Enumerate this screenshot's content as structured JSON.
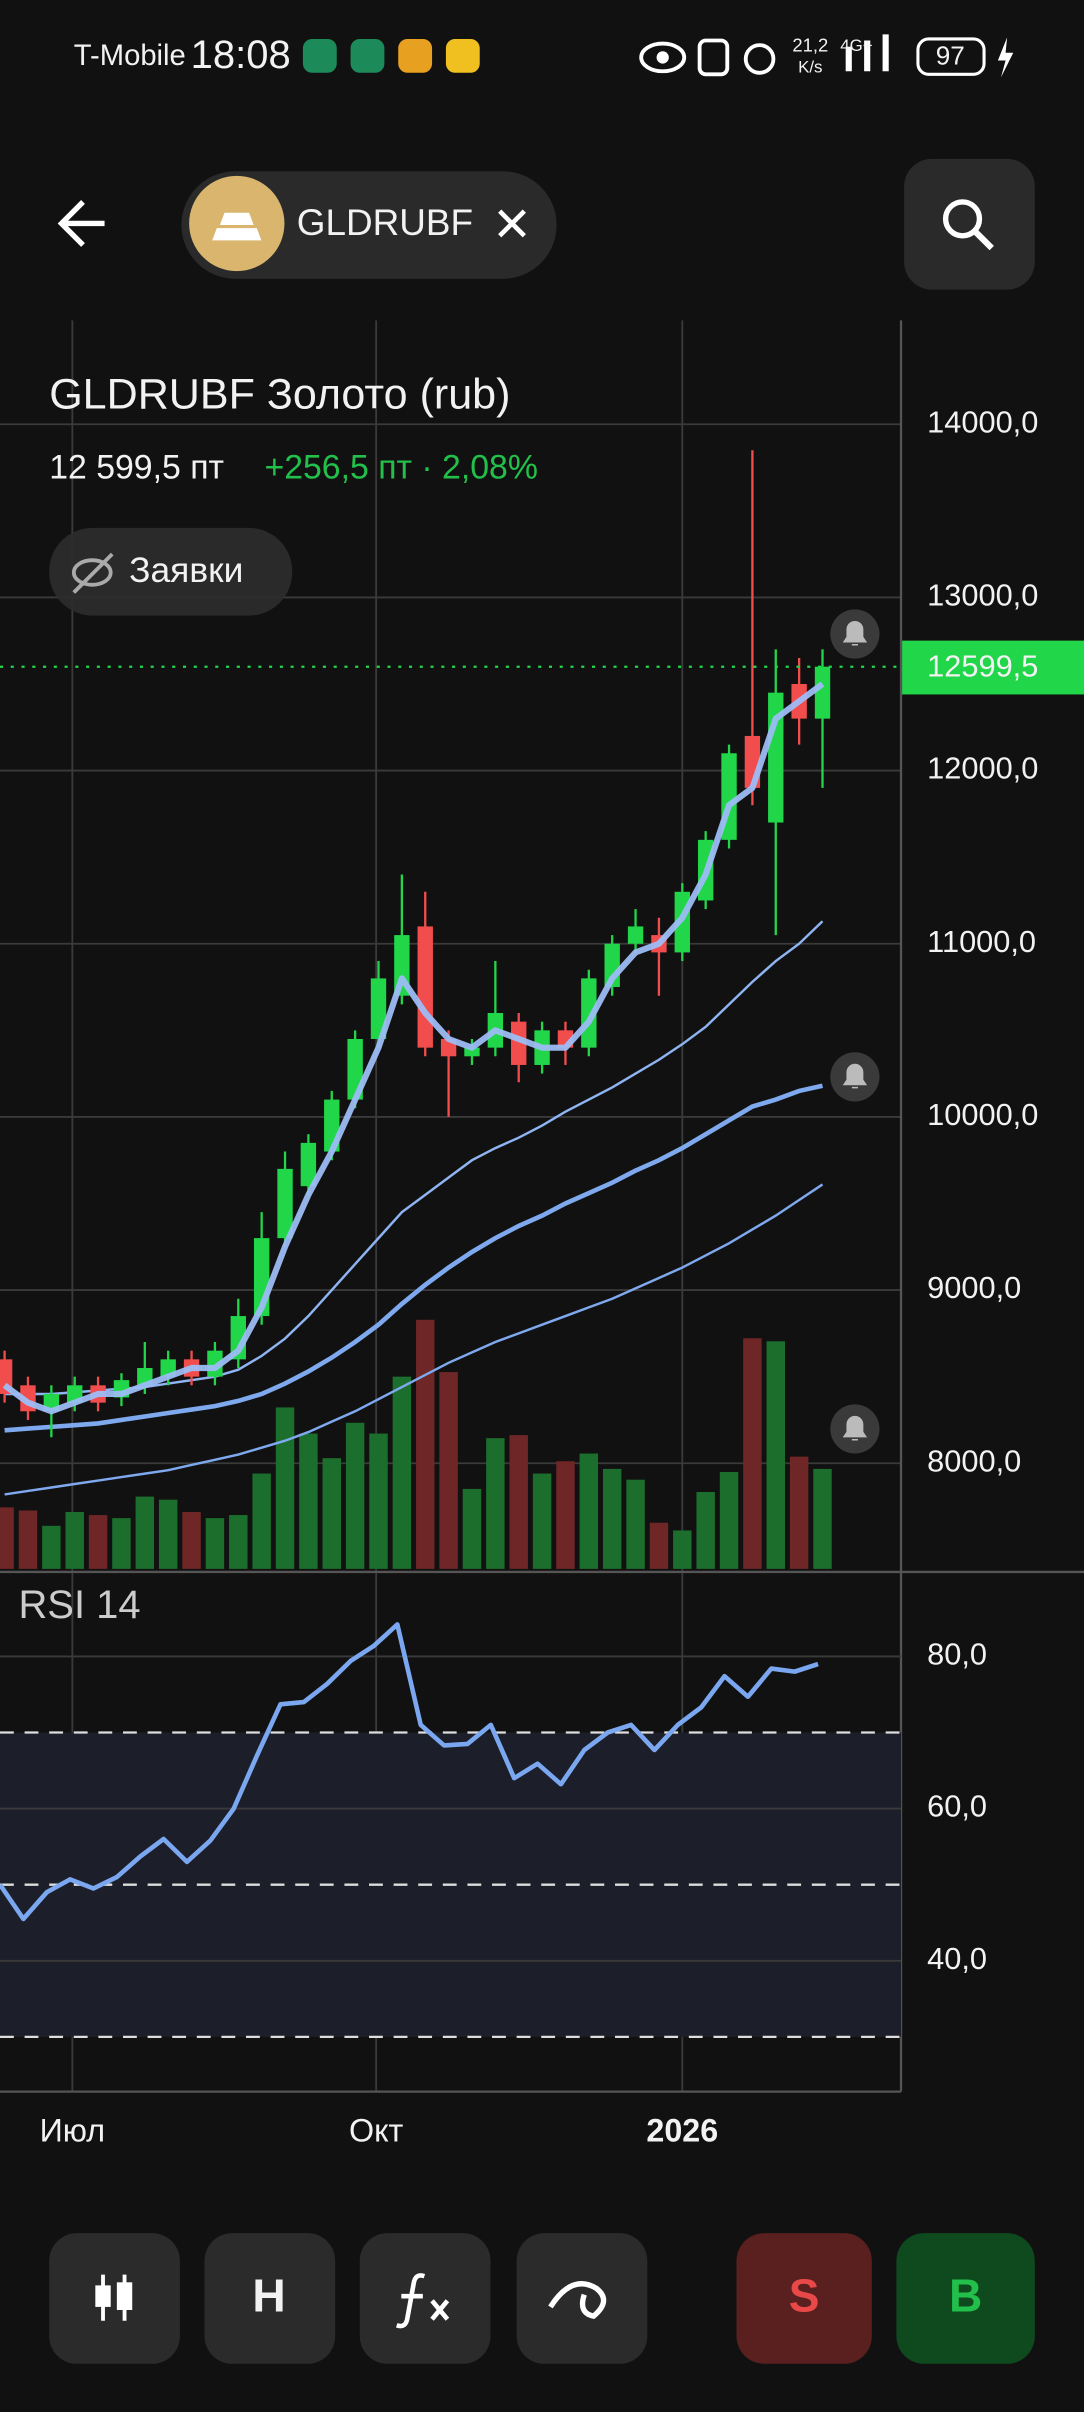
{
  "status_bar": {
    "carrier": "T-Mobile",
    "time": "18:08",
    "net_speed": "21,2",
    "net_unit": "K/s",
    "network": "4G+",
    "battery": "97"
  },
  "header": {
    "ticker": "GLDRUBF"
  },
  "instrument": {
    "title": "GLDRUBF Золото (rub)",
    "price": "12 599,5 пт",
    "change": "+256,5 пт · 2,08%"
  },
  "orders_button": "Заявки",
  "toolbar": {
    "h_button": "H",
    "sell_button": "S",
    "buy_button": "B"
  },
  "chart_data": [
    {
      "type": "candlestick",
      "x": [
        0,
        1,
        2,
        3,
        4,
        5,
        6,
        7,
        8,
        9,
        10,
        11,
        12,
        13,
        14,
        15,
        16,
        17,
        18,
        19,
        20,
        21,
        22,
        23,
        24,
        25,
        26,
        27,
        28,
        29,
        30,
        31,
        32,
        33,
        34,
        35
      ],
      "open": [
        8600,
        8450,
        8300,
        8350,
        8450,
        8380,
        8450,
        8500,
        8600,
        8500,
        8600,
        8850,
        9300,
        9600,
        9800,
        10100,
        10450,
        10700,
        11100,
        10450,
        10350,
        10400,
        10550,
        10300,
        10500,
        10400,
        10750,
        11000,
        11050,
        10950,
        11250,
        11600,
        12200,
        11700,
        12500,
        12300
      ],
      "close": [
        8400,
        8300,
        8400,
        8450,
        8350,
        8480,
        8550,
        8600,
        8500,
        8650,
        8850,
        9300,
        9700,
        9850,
        10100,
        10450,
        10800,
        11050,
        10400,
        10350,
        10400,
        10600,
        10300,
        10500,
        10400,
        10800,
        11000,
        11100,
        10950,
        11300,
        11600,
        12100,
        11900,
        12450,
        12300,
        12600
      ],
      "high": [
        8650,
        8500,
        8450,
        8500,
        8500,
        8520,
        8700,
        8650,
        8650,
        8700,
        8950,
        9450,
        9800,
        9900,
        10150,
        10500,
        10900,
        11400,
        11300,
        10500,
        10450,
        10900,
        10600,
        10550,
        10550,
        10850,
        11050,
        11200,
        11150,
        11350,
        11650,
        12150,
        13850,
        12700,
        12650,
        12700
      ],
      "low": [
        8350,
        8250,
        8150,
        8300,
        8300,
        8330,
        8400,
        8450,
        8450,
        8450,
        8550,
        8800,
        9250,
        9550,
        9750,
        10050,
        10400,
        10650,
        10350,
        10000,
        10300,
        10350,
        10200,
        10250,
        10300,
        10350,
        10700,
        10950,
        10700,
        10900,
        11200,
        11550,
        11800,
        11050,
        12150,
        11900
      ],
      "up_color": "#22d64a",
      "down_color": "#f24d4d",
      "volume": [
        40,
        38,
        28,
        37,
        35,
        33,
        47,
        45,
        37,
        33,
        35,
        62,
        105,
        88,
        72,
        95,
        88,
        125,
        162,
        128,
        52,
        85,
        87,
        62,
        70,
        75,
        65,
        58,
        30,
        25,
        50,
        63,
        150,
        148,
        73,
        65
      ],
      "volume_lim": [
        0,
        812
      ],
      "volume_up_color": "#1c6e2c",
      "volume_down_color": "#6e2626",
      "moving_averages": [
        {
          "color": "#7fa9ee",
          "values": [
            7820,
            7840,
            7860,
            7880,
            7900,
            7920,
            7940,
            7960,
            7990,
            8020,
            8050,
            8090,
            8130,
            8180,
            8240,
            8300,
            8370,
            8440,
            8510,
            8580,
            8640,
            8700,
            8750,
            8800,
            8850,
            8900,
            8950,
            9010,
            9070,
            9130,
            9200,
            9270,
            9350,
            9430,
            9520,
            9610
          ]
        },
        {
          "color": "#7fa9ee",
          "values": [
            8190,
            8200,
            8210,
            8220,
            8230,
            8250,
            8270,
            8290,
            8310,
            8330,
            8360,
            8400,
            8460,
            8530,
            8610,
            8700,
            8800,
            8920,
            9030,
            9130,
            9220,
            9300,
            9370,
            9430,
            9500,
            9560,
            9620,
            9690,
            9750,
            9820,
            9900,
            9980,
            10060,
            10100,
            10150,
            10180
          ]
        },
        {
          "color": "#8fb4f2",
          "values": [
            8400,
            8400,
            8400,
            8410,
            8420,
            8430,
            8440,
            8460,
            8480,
            8500,
            8540,
            8620,
            8720,
            8850,
            9000,
            9150,
            9300,
            9450,
            9550,
            9650,
            9750,
            9820,
            9880,
            9950,
            10030,
            10100,
            10170,
            10250,
            10330,
            10420,
            10520,
            10650,
            10780,
            10900,
            11000,
            11130
          ]
        },
        {
          "color": "#9dbdf5",
          "values": [
            8450,
            8350,
            8300,
            8350,
            8400,
            8400,
            8450,
            8500,
            8550,
            8550,
            8650,
            8900,
            9250,
            9550,
            9800,
            10100,
            10400,
            10800,
            10600,
            10450,
            10400,
            10500,
            10450,
            10400,
            10400,
            10550,
            10800,
            10950,
            11000,
            11150,
            11400,
            11800,
            11900,
            12300,
            12400,
            12500
          ]
        }
      ],
      "last": {
        "value": 12599.5,
        "label": "12599,5",
        "color": "#22d64a"
      },
      "xlim": [
        -0.197,
        38.36
      ],
      "xticks": [
        {
          "value": 2.9,
          "label": "Июл"
        },
        {
          "value": 15.9,
          "label": "Окт"
        },
        {
          "value": 29,
          "label": "2026"
        }
      ],
      "ylim": [
        7390,
        14600
      ],
      "yticks": [
        {
          "value": 8000,
          "label": "8000,0"
        },
        {
          "value": 9000,
          "label": "9000,0"
        },
        {
          "value": 10000,
          "label": "10000,0"
        },
        {
          "value": 11000,
          "label": "11000,0"
        },
        {
          "value": 12000,
          "label": "12000,0"
        },
        {
          "value": 13000,
          "label": "13000,0"
        },
        {
          "value": 14000,
          "label": "14000,0"
        }
      ],
      "grid": true
    },
    {
      "type": "line",
      "title": "RSI 14",
      "x": [
        0,
        1,
        2,
        3,
        4,
        5,
        6,
        7,
        8,
        9,
        10,
        11,
        12,
        13,
        14,
        15,
        16,
        17,
        18,
        19,
        20,
        21,
        22,
        23,
        24,
        25,
        26,
        27,
        28,
        29,
        30,
        31,
        32,
        33,
        34,
        35
      ],
      "values": [
        50,
        45.5,
        49,
        50.7,
        49.5,
        51,
        53.7,
        56,
        53,
        55.8,
        60,
        67,
        73.7,
        74,
        76.4,
        79.4,
        81.4,
        84.2,
        71,
        68.3,
        68.5,
        71,
        64,
        65.9,
        63.2,
        67.7,
        70,
        71,
        67.7,
        71,
        73.3,
        77.4,
        74.7,
        78.4,
        78,
        79
      ],
      "color": "#7aa7f0",
      "xlim": [
        0,
        38.55
      ],
      "ylim": [
        22.8,
        91.1
      ],
      "levels": [
        30,
        50,
        70
      ],
      "yticks": [
        {
          "value": 40,
          "label": "40,0"
        },
        {
          "value": 60,
          "label": "60,0"
        },
        {
          "value": 80,
          "label": "80,0"
        }
      ],
      "grid": true
    }
  ]
}
